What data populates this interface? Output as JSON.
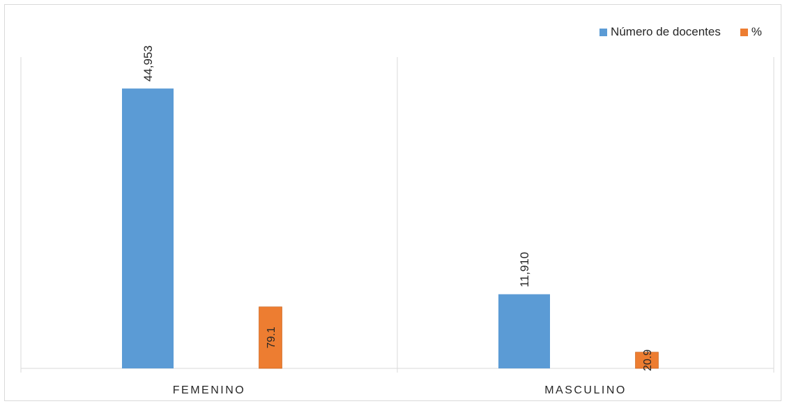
{
  "chart_data": {
    "type": "bar",
    "categories": [
      "FEMENINO",
      "MASCULINO"
    ],
    "series": [
      {
        "name": "Número  de docentes",
        "values": [
          44953,
          11910
        ],
        "labels": [
          "44,953",
          "11,910"
        ],
        "color": "#5b9bd5",
        "axis": "primary",
        "ylim": [
          0,
          50000
        ]
      },
      {
        "name": "%",
        "values": [
          79.1,
          20.9
        ],
        "labels": [
          "79.1",
          "20.9"
        ],
        "color": "#ed7d31",
        "axis": "secondary",
        "ylim": [
          0,
          400
        ]
      }
    ],
    "grid": false,
    "legend": "top-right",
    "title": "",
    "xlabel": "",
    "ylabel": ""
  }
}
